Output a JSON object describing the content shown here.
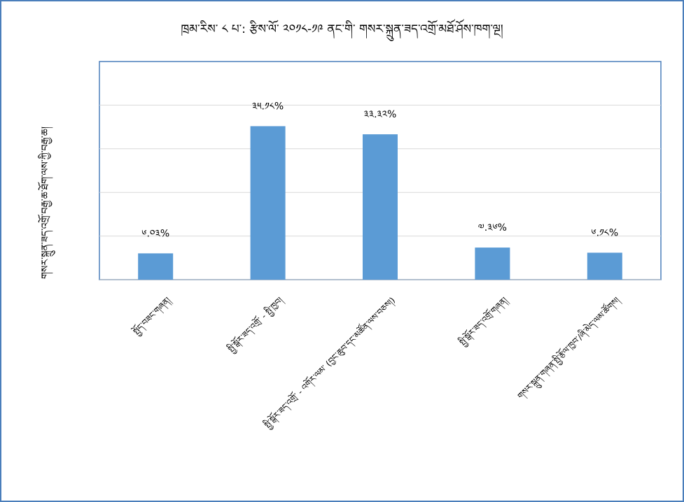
{
  "chart_data": {
    "type": "bar",
    "title": "ཁྲམ་རིས་ ༨ པ་: རྩིས་ལོ་ ༢༠༡༨-༡༩ ནང་གི་ གསར་སྐྲུན་ཟད་འགྲོ་མཐོ་ཤོས་ཁག་ལྔ།",
    "ylabel": "གསར་སྐྲུན་ཟད་འགྲོ་བརྒྱ་ཆ་ཐོག་ལས་ཀྱི་བརྒྱ་ཆ།",
    "xlabel": "",
    "categories": [
      "སྤྱོད་བཟང་གཞན།",
      "སྤྱི་སྒོར་ཟད་འགྲོ་ - སྤྱི་ཁྱབ།",
      "སྤྱི་སྒོར་ཟད་འགྲོ་ - འགོར་ལམ་ (བྱང་ཆུབ་དང་མཚོན་ལས་བཅས།)",
      "སྤྱི་སྒོར་ཟད་འགྲོ་གཞན།",
      "གསར་སྐྲུན་གཞན་སྤྱི་རྩོལ་ཁྱབ་/ཞི་མེད་ལམ་ཚོགས།"
    ],
    "values": [
      6.03,
      35.18,
      33.32,
      7.36,
      6.18
    ],
    "value_labels": [
      "༦.༠༣%",
      "༣༥.༡༨%",
      "༣༣.༣༢%",
      "༧.༣༦%",
      "༦.༡༨%"
    ],
    "ylim": [
      0,
      50
    ],
    "grid": true,
    "legend": "none",
    "colors": {
      "bar": "#5b9bd5",
      "grid": "#d9d9d9",
      "plot_border": "#4a7ebb",
      "frame": "#4a7ebb"
    }
  }
}
